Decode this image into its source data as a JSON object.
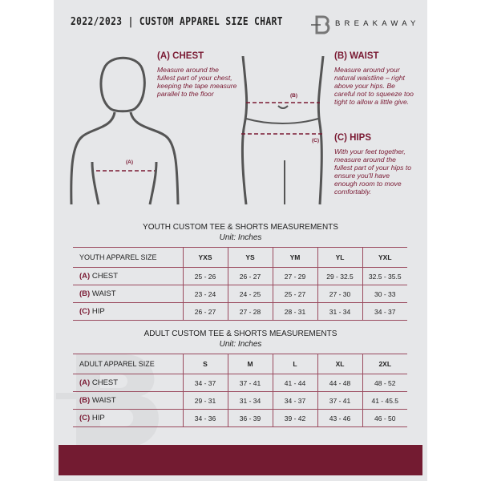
{
  "header": {
    "title": "2022/2023 | CUSTOM APPAREL SIZE CHART",
    "brand": "BREAKAWAY",
    "logo_letter": "B"
  },
  "measurements": {
    "chest": {
      "title": "(A) CHEST",
      "desc": "Measure around the fullest part of your chest, keeping the tape measure parallel to the floor",
      "marker": "(A)"
    },
    "waist": {
      "title": "(B) WAIST",
      "desc": "Measure around your natural waistline – right above your hips. Be careful not to squeeze too tight to allow a little give.",
      "marker": "(B)"
    },
    "hips": {
      "title": "(C) HIPS",
      "desc": "With your feet together, measure around the fullest part of your hips to ensure you'll have enough room to move comfortably.",
      "marker": "(C)"
    }
  },
  "youth": {
    "title": "YOUTH CUSTOM TEE & SHORTS MEASUREMENTS",
    "unit": "Unit: Inches",
    "header_label": "YOUTH APPAREL SIZE",
    "sizes": [
      "YXS",
      "YS",
      "YM",
      "YL",
      "YXL"
    ],
    "rows": [
      {
        "code": "(A)",
        "name": "CHEST",
        "values": [
          "25 - 26",
          "26 - 27",
          "27 - 29",
          "29 - 32.5",
          "32.5 - 35.5"
        ]
      },
      {
        "code": "(B)",
        "name": "WAIST",
        "values": [
          "23 - 24",
          "24 - 25",
          "25 - 27",
          "27 - 30",
          "30 - 33"
        ]
      },
      {
        "code": "(C)",
        "name": "HIP",
        "values": [
          "26 - 27",
          "27 - 28",
          "28 - 31",
          "31 - 34",
          "34 - 37"
        ]
      }
    ]
  },
  "adult": {
    "title": "ADULT CUSTOM TEE & SHORTS MEASUREMENTS",
    "unit": "Unit: Inches",
    "header_label": "ADULT APPAREL SIZE",
    "sizes": [
      "S",
      "M",
      "L",
      "XL",
      "2XL"
    ],
    "rows": [
      {
        "code": "(A)",
        "name": "CHEST",
        "values": [
          "34 - 37",
          "37 - 41",
          "41 - 44",
          "44 - 48",
          "48 - 52"
        ]
      },
      {
        "code": "(B)",
        "name": "WAIST",
        "values": [
          "29 - 31",
          "31 - 34",
          "34 - 37",
          "37 - 41",
          "41 - 45.5"
        ]
      },
      {
        "code": "(C)",
        "name": "HIP",
        "values": [
          "34 - 36",
          "36 - 39",
          "39 - 42",
          "43 - 46",
          "46 - 50"
        ]
      }
    ]
  },
  "colors": {
    "accent": "#7a1a33",
    "footer": "#731b31",
    "panel": "#e6e7e9"
  }
}
